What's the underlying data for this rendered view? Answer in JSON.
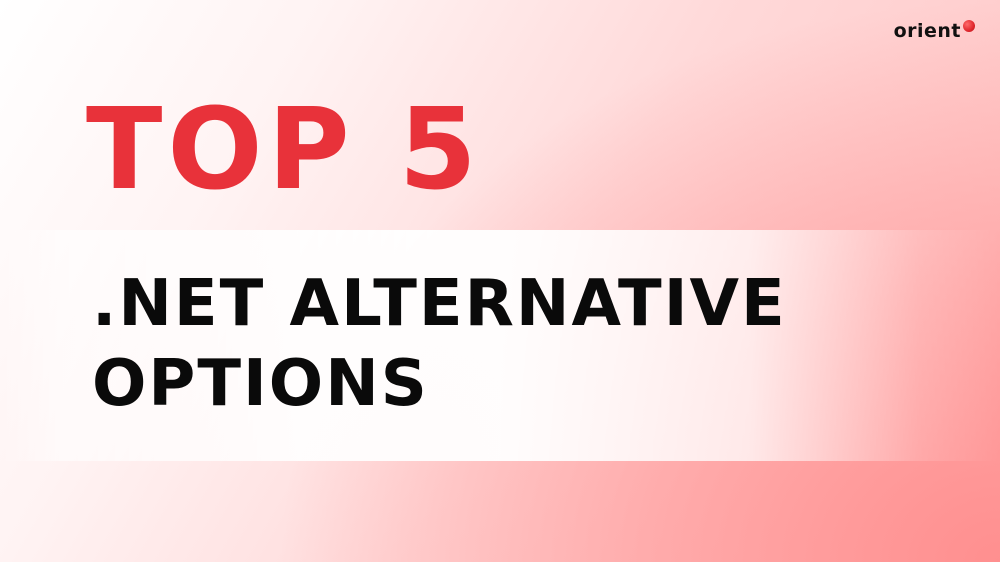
{
  "logo": {
    "text": "orient",
    "dot_color": "#e8323a"
  },
  "headline": {
    "text": "TOP 5",
    "color": "#e8323a"
  },
  "subtitle": {
    "line1": ".NET ALTERNATIVE",
    "line2": "OPTIONS",
    "color": "#0a0a0a"
  },
  "background": {
    "accent": "#ff9a9a",
    "base": "#ffffff"
  }
}
